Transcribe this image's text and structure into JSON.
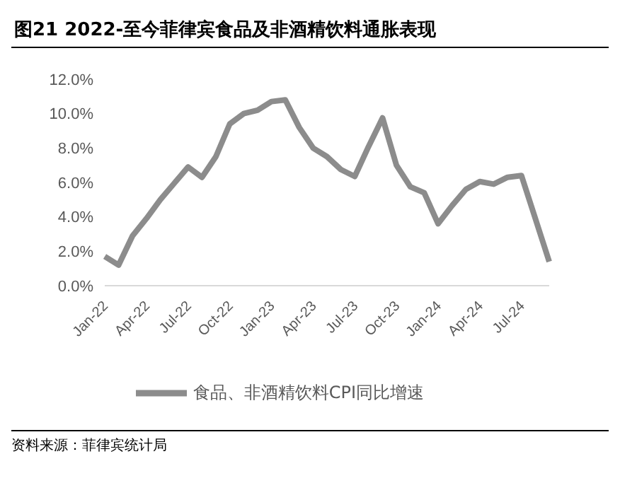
{
  "chart_data": {
    "type": "line",
    "title": "图21 2022-至今菲律宾食品及非酒精饮料通胀表现",
    "categories": [
      "Jan-22",
      null,
      null,
      "Apr-22",
      null,
      null,
      "Jul-22",
      null,
      null,
      "Oct-22",
      null,
      null,
      "Jan-23",
      null,
      null,
      "Apr-23",
      null,
      null,
      "Jul-23",
      null,
      null,
      "Oct-23",
      null,
      null,
      "Jan-24",
      null,
      null,
      "Apr-24",
      null,
      null,
      "Jul-24",
      null,
      null
    ],
    "series": [
      {
        "name": "食品、非酒精饮料CPI同比增速",
        "color": "#8c8c8c",
        "values": [
          1.7,
          1.2,
          2.9,
          3.9,
          5.0,
          5.95,
          6.9,
          6.3,
          7.5,
          9.4,
          10.0,
          10.2,
          10.7,
          10.8,
          9.2,
          8.0,
          7.5,
          6.75,
          6.35,
          8.1,
          9.75,
          7.0,
          5.75,
          5.4,
          3.6,
          4.65,
          5.6,
          6.05,
          5.9,
          6.3,
          6.4,
          3.9,
          1.4
        ]
      }
    ],
    "ylim": [
      0,
      12
    ],
    "yticks": [
      {
        "value": 0,
        "label": "0.0%"
      },
      {
        "value": 2,
        "label": "2.0%"
      },
      {
        "value": 4,
        "label": "4.0%"
      },
      {
        "value": 6,
        "label": "6.0%"
      },
      {
        "value": 8,
        "label": "8.0%"
      },
      {
        "value": 10,
        "label": "10.0%"
      },
      {
        "value": 12,
        "label": "12.0%"
      }
    ],
    "grid": false,
    "legend": "bottom",
    "marker": "none",
    "line_style": "solid",
    "annotations": [
      "资料来源：菲律宾统计局"
    ]
  }
}
